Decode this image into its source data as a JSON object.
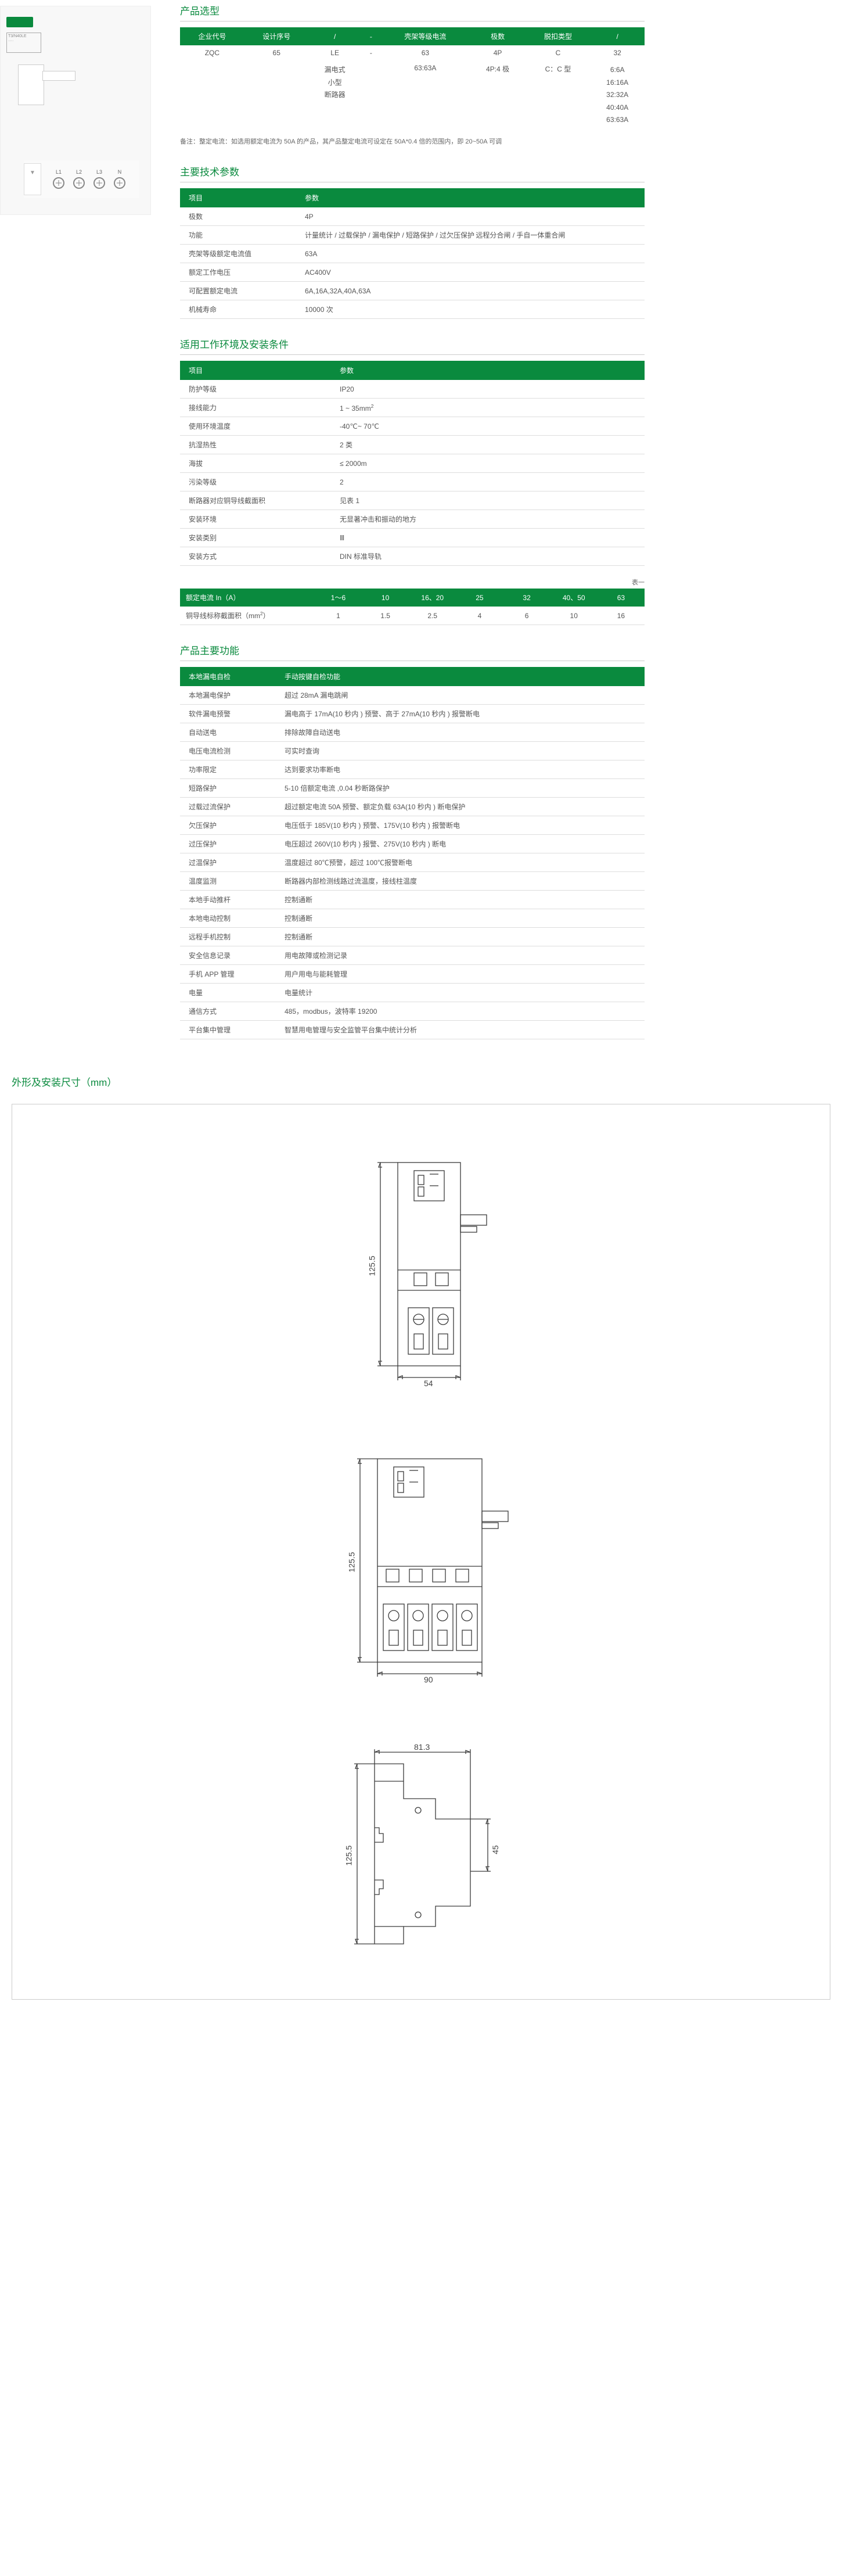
{
  "sections": {
    "selection": "产品选型",
    "tech": "主要技术参数",
    "env": "适用工作环境及安装条件",
    "func": "产品主要功能",
    "dim": "外形及安装尺寸（mm）"
  },
  "sel_headers": [
    "企业代号",
    "设计序号",
    "/",
    "-",
    "壳架等级电流",
    "极数",
    "脱扣类型",
    "/"
  ],
  "sel_row1": [
    "ZQC",
    "65",
    "LE",
    "-",
    "63",
    "4P",
    "C",
    "32"
  ],
  "sel_row2_desc": "漏电式\n小型\n断路器",
  "sel_row2_current": "63:63A",
  "sel_row2_poles": "4P:4 极",
  "sel_row2_trip": "C：C 型",
  "sel_row2_vals": "6:6A\n16:16A\n32:32A\n40:40A\n63:63A",
  "sel_note": "备注：整定电流：如选用额定电流为 50A 的产品，其产品整定电流可设定在 50A*0.4 倍的范围内，即 20~50A 可调",
  "kv_header1": "项目",
  "kv_header2": "参数",
  "tech_rows": [
    [
      "极数",
      "4P"
    ],
    [
      "功能",
      "计量统计 / 过载保护 / 漏电保护 / 短路保护 / 过欠压保护 远程分合闸 / 手自一体重合闸"
    ],
    [
      "壳架等级额定电流值",
      "63A"
    ],
    [
      "额定工作电压",
      "AC400V"
    ],
    [
      "可配置额定电流",
      "6A,16A,32A,40A,63A"
    ],
    [
      "机械寿命",
      "10000 次"
    ]
  ],
  "env_rows": [
    [
      "防护等级",
      "IP20"
    ],
    [
      "接线能力",
      "1 ~ 35mm²"
    ],
    [
      "使用环境温度",
      "-40℃~ 70℃"
    ],
    [
      "抗湿热性",
      "2 类"
    ],
    [
      "海拔",
      "≤ 2000m"
    ],
    [
      "污染等级",
      "2"
    ],
    [
      "断路器对应铜导线截面积",
      "见表 1"
    ],
    [
      "安装环境",
      "无显著冲击和振动的地方"
    ],
    [
      "安装类别",
      "Ⅲ"
    ],
    [
      "安装方式",
      "DIN 标准导轨"
    ]
  ],
  "table1_label": "表一",
  "rated_h": [
    "额定电流 In（A）",
    "1～6",
    "10",
    "16、20",
    "25",
    "32",
    "40、50",
    "63"
  ],
  "rated_r": [
    "铜导线标称截面积（mm²）",
    "1",
    "1.5",
    "2.5",
    "4",
    "6",
    "10",
    "16"
  ],
  "func_header1": "本地漏电自检",
  "func_header2": "手动按键自检功能",
  "func_rows": [
    [
      "本地漏电保护",
      "超过 28mA 漏电跳闸"
    ],
    [
      "软件漏电预警",
      "漏电高于 17mA(10 秒内 ) 预警、高于 27mA(10 秒内 ) 报警断电"
    ],
    [
      "自动送电",
      "排除故障自动送电"
    ],
    [
      "电压电流检测",
      "可实时查询"
    ],
    [
      "功率限定",
      "达到要求功率断电"
    ],
    [
      "短路保护",
      "5-10 倍额定电流 ,0.04 秒断路保护"
    ],
    [
      "过载过流保护",
      "超过额定电流 50A 预警、额定负载 63A(10 秒内 ) 断电保护"
    ],
    [
      "欠压保护",
      "电压低于 185V(10 秒内 ) 预警、175V(10 秒内 ) 报警断电"
    ],
    [
      "过压保护",
      "电压超过 260V(10 秒内 ) 报警、275V(10 秒内 ) 断电"
    ],
    [
      "过温保护",
      "温度超过 80℃预警，超过 100℃报警断电"
    ],
    [
      "温度监测",
      "断路器内部检测线路过流温度，接线柱温度"
    ],
    [
      "本地手动推杆",
      "控制通断"
    ],
    [
      "本地电动控制",
      "控制通断"
    ],
    [
      "远程手机控制",
      "控制通断"
    ],
    [
      "安全信息记录",
      "用电故障或检测记录"
    ],
    [
      "手机 APP 管理",
      "用户用电与能耗管理"
    ],
    [
      "电量",
      "电量统计"
    ],
    [
      "通信方式",
      "485，modbus，波特率 19200"
    ],
    [
      "平台集中管理",
      "智慧用电管理与安全监管平台集中统计分析"
    ]
  ],
  "dims": {
    "d1_h": "125.5",
    "d1_w": "54",
    "d2_h": "125.5",
    "d2_w": "90",
    "d3_h": "125.5",
    "d3_w": "81.3",
    "d3_d": "45"
  },
  "terminals": [
    "L1",
    "L2",
    "L3",
    "N"
  ]
}
